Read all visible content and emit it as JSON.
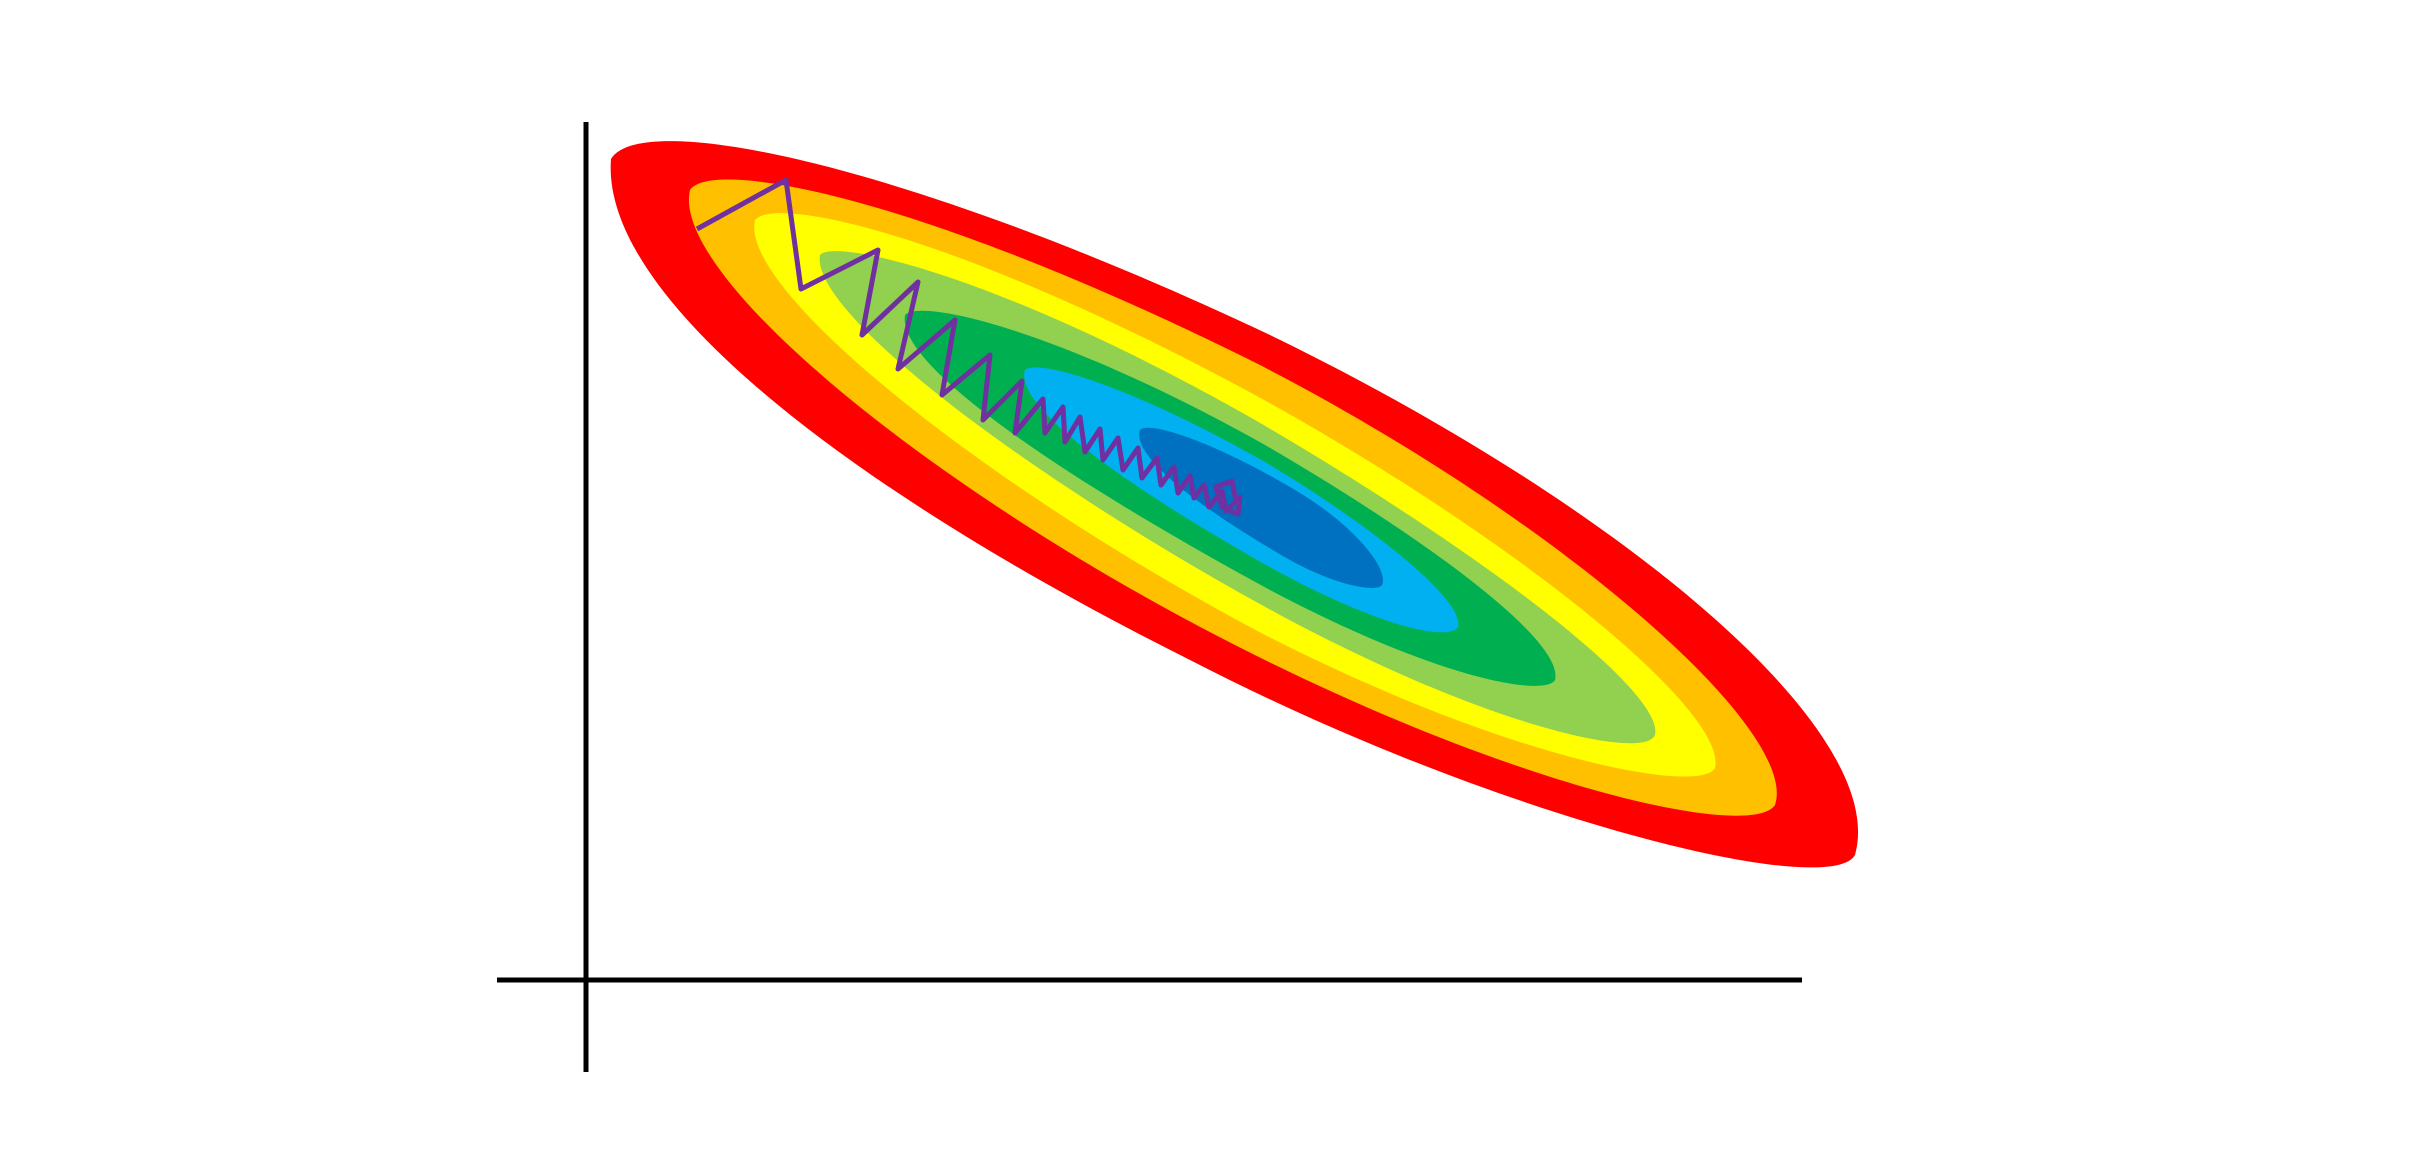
{
  "diagram": {
    "type": "contour-descent",
    "colors": {
      "background": "#ffffff",
      "axes": "#000000",
      "path": "#7030a0"
    },
    "contour_levels": [
      {
        "name": "contour-level-1",
        "color": "#ff0000"
      },
      {
        "name": "contour-level-2",
        "color": "#ffc000"
      },
      {
        "name": "contour-level-3",
        "color": "#ffff00"
      },
      {
        "name": "contour-level-4",
        "color": "#92d050"
      },
      {
        "name": "contour-level-5",
        "color": "#00b050"
      },
      {
        "name": "contour-level-6",
        "color": "#00b0f0"
      },
      {
        "name": "contour-level-7",
        "color": "#0070c0"
      }
    ]
  }
}
